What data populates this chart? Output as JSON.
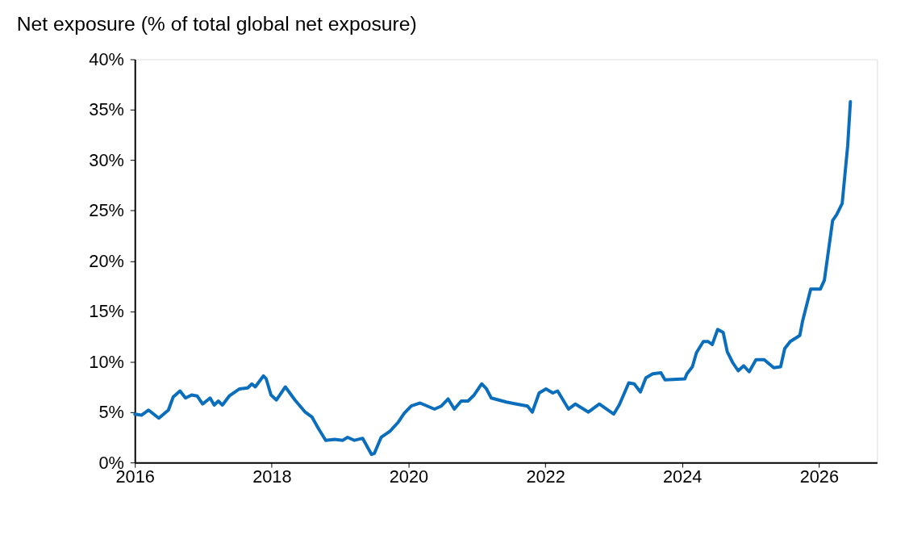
{
  "chart_data": {
    "type": "line",
    "title": "Net exposure (% of total global net exposure)",
    "x": [
      2016.0,
      2016.1,
      2016.2,
      2016.35,
      2016.49,
      2016.56,
      2016.66,
      2016.74,
      2016.83,
      2016.91,
      2016.99,
      2017.1,
      2017.16,
      2017.22,
      2017.28,
      2017.38,
      2017.53,
      2017.65,
      2017.71,
      2017.76,
      2017.88,
      2017.92,
      2017.99,
      2018.07,
      2018.2,
      2018.34,
      2018.49,
      2018.59,
      2018.69,
      2018.79,
      2018.92,
      2019.04,
      2019.11,
      2019.21,
      2019.33,
      2019.46,
      2019.5,
      2019.6,
      2019.73,
      2019.85,
      2019.94,
      2020.04,
      2020.17,
      2020.38,
      2020.48,
      2020.58,
      2020.67,
      2020.77,
      2020.87,
      2020.96,
      2021.07,
      2021.14,
      2021.21,
      2021.43,
      2021.58,
      2021.74,
      2021.81,
      2021.91,
      2022.01,
      2022.11,
      2022.18,
      2022.34,
      2022.44,
      2022.63,
      2022.79,
      2023.0,
      2023.08,
      2023.22,
      2023.3,
      2023.39,
      2023.47,
      2023.57,
      2023.69,
      2023.75,
      2024.04,
      2024.07,
      2024.15,
      2024.21,
      2024.31,
      2024.38,
      2024.44,
      2024.52,
      2024.6,
      2024.66,
      2024.74,
      2024.82,
      2024.9,
      2024.98,
      2025.08,
      2025.2,
      2025.34,
      2025.44,
      2025.5,
      2025.58,
      2025.72,
      2025.76,
      2025.88,
      2026.02,
      2026.08,
      2026.2,
      2026.26,
      2026.34,
      2026.42,
      2026.46
    ],
    "series": [
      {
        "color": "#0a6ebd",
        "values": [
          4.8,
          4.7,
          5.2,
          4.4,
          5.2,
          6.5,
          7.1,
          6.4,
          6.7,
          6.6,
          5.8,
          6.4,
          5.7,
          6.1,
          5.7,
          6.6,
          7.3,
          7.4,
          7.8,
          7.5,
          8.6,
          8.3,
          6.7,
          6.2,
          7.5,
          6.2,
          5.0,
          4.5,
          3.3,
          2.2,
          2.3,
          2.2,
          2.5,
          2.2,
          2.4,
          0.8,
          0.9,
          2.5,
          3.1,
          4.0,
          4.9,
          5.6,
          5.9,
          5.3,
          5.6,
          6.3,
          5.3,
          6.1,
          6.1,
          6.7,
          7.8,
          7.3,
          6.4,
          6.0,
          5.8,
          5.6,
          5.0,
          6.9,
          7.3,
          6.9,
          7.1,
          5.3,
          5.8,
          5.0,
          5.8,
          4.8,
          5.7,
          7.9,
          7.8,
          7.0,
          8.4,
          8.8,
          8.9,
          8.2,
          8.3,
          8.8,
          9.5,
          10.9,
          12.0,
          12.0,
          11.7,
          13.2,
          12.9,
          11.0,
          9.9,
          9.1,
          9.6,
          9.0,
          10.2,
          10.2,
          9.4,
          9.5,
          11.3,
          12.0,
          12.6,
          14.0,
          17.2,
          17.2,
          18.1,
          24.0,
          24.6,
          25.7,
          31.4,
          35.8
        ]
      }
    ],
    "xlim": [
      2016,
      2026.85
    ],
    "xticks": [
      2016,
      2018,
      2020,
      2022,
      2024,
      2026
    ],
    "ylim": [
      0,
      40
    ],
    "yticks": [
      {
        "value": 0,
        "label": "0%"
      },
      {
        "value": 5,
        "label": "5%"
      },
      {
        "value": 10,
        "label": "10%"
      },
      {
        "value": 15,
        "label": "15%"
      },
      {
        "value": 20,
        "label": "20%"
      },
      {
        "value": 25,
        "label": "25%"
      },
      {
        "value": 30,
        "label": "30%"
      },
      {
        "value": 35,
        "label": "35%"
      },
      {
        "value": 40,
        "label": "40%"
      }
    ],
    "grid": false,
    "line_style": "solid",
    "marker": "none"
  }
}
